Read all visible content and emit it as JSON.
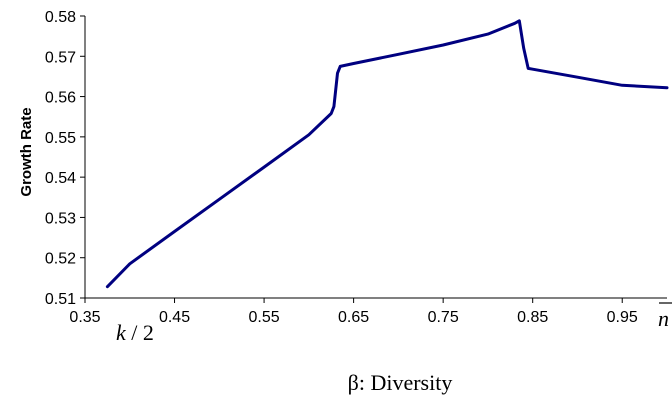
{
  "chart_data": {
    "type": "line",
    "title": "",
    "xlabel": "β: Diversity",
    "ylabel": "Growth Rate",
    "xlim": [
      0.35,
      1.0
    ],
    "ylim": [
      0.51,
      0.58
    ],
    "xticks": [
      "0.35",
      "0.45",
      "0.55",
      "0.65",
      "0.75",
      "0.85",
      "0.95"
    ],
    "yticks": [
      "0.51",
      "0.52",
      "0.53",
      "0.54",
      "0.55",
      "0.56",
      "0.57",
      "0.58"
    ],
    "x_start_label": {
      "var": "k",
      "rest": " / 2"
    },
    "x_end_label": {
      "var": "n"
    },
    "grid": false,
    "legend": "none",
    "line_color": "#000080",
    "series": [
      {
        "x": [
          0.375,
          0.4,
          0.45,
          0.5,
          0.55,
          0.6,
          0.625,
          0.628,
          0.632,
          0.635,
          0.65,
          0.7,
          0.75,
          0.8,
          0.83,
          0.835,
          0.84,
          0.845,
          0.85,
          0.9,
          0.95,
          1.0
        ],
        "values": [
          0.5128,
          0.5185,
          0.5265,
          0.5345,
          0.5425,
          0.5505,
          0.5558,
          0.5575,
          0.5658,
          0.5675,
          0.5682,
          0.5705,
          0.5728,
          0.5755,
          0.5782,
          0.5788,
          0.572,
          0.567,
          0.5668,
          0.5648,
          0.5628,
          0.5622
        ]
      }
    ]
  }
}
